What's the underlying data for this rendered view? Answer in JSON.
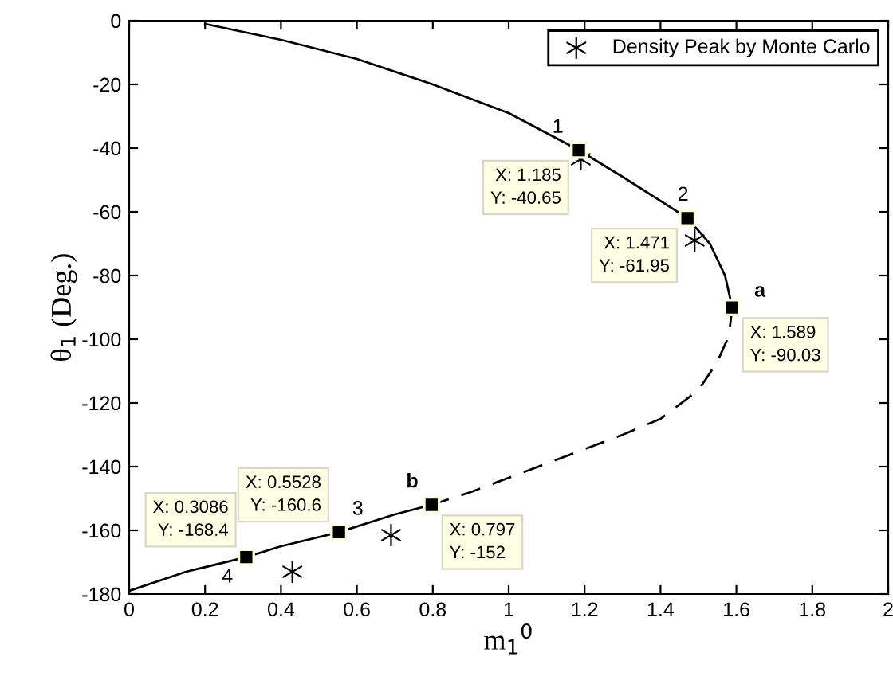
{
  "chart_data": {
    "type": "line",
    "xlabel": "m$_{1}$$^{0}$",
    "ylabel": "θ$_{1}$ (Deg.)",
    "xlim": [
      0,
      2
    ],
    "ylim": [
      -180,
      0
    ],
    "xticks": [
      0,
      0.2,
      0.4,
      0.6,
      0.8,
      1,
      1.2,
      1.4,
      1.6,
      1.8,
      2
    ],
    "yticks": [
      -180,
      -160,
      -140,
      -120,
      -100,
      -80,
      -60,
      -40,
      -20,
      0
    ],
    "grid": false,
    "legend": "top right",
    "series": [
      {
        "color": "#000000",
        "line_style": "solid",
        "x": [
          0.2,
          0.4,
          0.6,
          0.8,
          1.0,
          1.185,
          1.3,
          1.471,
          1.53,
          1.57,
          1.589
        ],
        "values": [
          -1,
          -6,
          -12,
          -20,
          -29,
          -40.65,
          -49,
          -61.95,
          -70,
          -80,
          -90.03
        ]
      },
      {
        "color": "#000000",
        "line_style": "dashed",
        "x": [
          1.589,
          1.58,
          1.55,
          1.5,
          1.4,
          1.3,
          1.2,
          1.1,
          1.0,
          0.9,
          0.797
        ],
        "values": [
          -90.03,
          -99,
          -107,
          -116,
          -125,
          -130,
          -134.5,
          -139,
          -143.5,
          -148,
          -152
        ]
      },
      {
        "color": "#000000",
        "line_style": "solid",
        "x": [
          0.797,
          0.7,
          0.5528,
          0.4,
          0.3086,
          0.15,
          0
        ],
        "values": [
          -152,
          -155,
          -160.6,
          -165,
          -168.4,
          -173,
          -179
        ]
      },
      {
        "type": "scatter",
        "marker": "square",
        "color": "#000000",
        "x": [
          1.185,
          1.471,
          1.589,
          0.797,
          0.5528,
          0.3086
        ],
        "values": [
          -40.65,
          -61.95,
          -90.03,
          -152,
          -160.6,
          -168.4
        ]
      },
      {
        "type": "scatter",
        "marker": "cross",
        "color": "#000000",
        "name": "Density Peak by Monte Carlo",
        "x": [
          1.19,
          1.49,
          0.43,
          0.69
        ],
        "values": [
          -43.5,
          -69,
          -173,
          -161.5
        ]
      }
    ],
    "annotations": [
      {
        "text": "X: 1.185\nY: -40.65",
        "x": 1.185,
        "y": -40.65
      },
      {
        "text": "X: 1.471\nY: -61.95",
        "x": 1.471,
        "y": -61.95
      },
      {
        "text": "X: 1.589\nY: -90.03",
        "x": 1.589,
        "y": -90.03
      },
      {
        "text": "X: 0.797\nY: -152",
        "x": 0.797,
        "y": -152
      },
      {
        "text": "X: 0.5528\nY: -160.6",
        "x": 0.5528,
        "y": -160.6
      },
      {
        "text": "X: 0.3086\nY: -168.4",
        "x": 0.3086,
        "y": -168.4
      },
      {
        "text": "1",
        "x": 1.185,
        "y": -40.65
      },
      {
        "text": "2",
        "x": 1.471,
        "y": -61.95
      },
      {
        "text": "a",
        "x": 1.589,
        "y": -90.03
      },
      {
        "text": "b",
        "x": 0.797,
        "y": -152
      },
      {
        "text": "3",
        "x": 0.5528,
        "y": -160.6
      },
      {
        "text": "4",
        "x": 0.3086,
        "y": -168.4
      }
    ]
  }
}
